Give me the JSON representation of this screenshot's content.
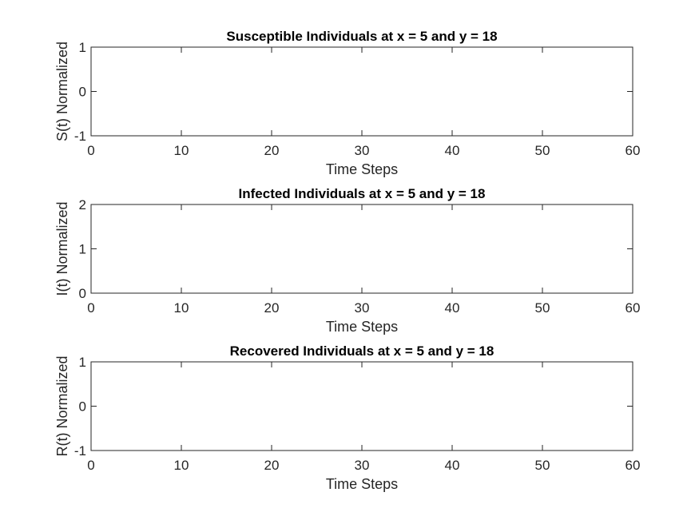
{
  "chart_data": [
    {
      "type": "line",
      "title": "Susceptible Individuals at x = 5 and y = 18",
      "xlabel": "Time Steps",
      "ylabel": "S(t) Normalized",
      "xlim": [
        0,
        60
      ],
      "ylim": [
        -1,
        1
      ],
      "xticks": [
        "0",
        "10",
        "20",
        "30",
        "40",
        "50",
        "60"
      ],
      "yticks": [
        "-1",
        "0",
        "1"
      ],
      "grid": false,
      "series": []
    },
    {
      "type": "line",
      "title": "Infected Individuals at x = 5 and y = 18",
      "xlabel": "Time Steps",
      "ylabel": "I(t) Normalized",
      "xlim": [
        0,
        60
      ],
      "ylim": [
        0,
        2
      ],
      "xticks": [
        "0",
        "10",
        "20",
        "30",
        "40",
        "50",
        "60"
      ],
      "yticks": [
        "0",
        "1",
        "2"
      ],
      "grid": false,
      "series": []
    },
    {
      "type": "line",
      "title": "Recovered Individuals at x = 5 and y = 18",
      "xlabel": "Time Steps",
      "ylabel": "R(t) Normalized",
      "xlim": [
        0,
        60
      ],
      "ylim": [
        -1,
        1
      ],
      "xticks": [
        "0",
        "10",
        "20",
        "30",
        "40",
        "50",
        "60"
      ],
      "yticks": [
        "-1",
        "0",
        "1"
      ],
      "grid": false,
      "series": []
    }
  ]
}
